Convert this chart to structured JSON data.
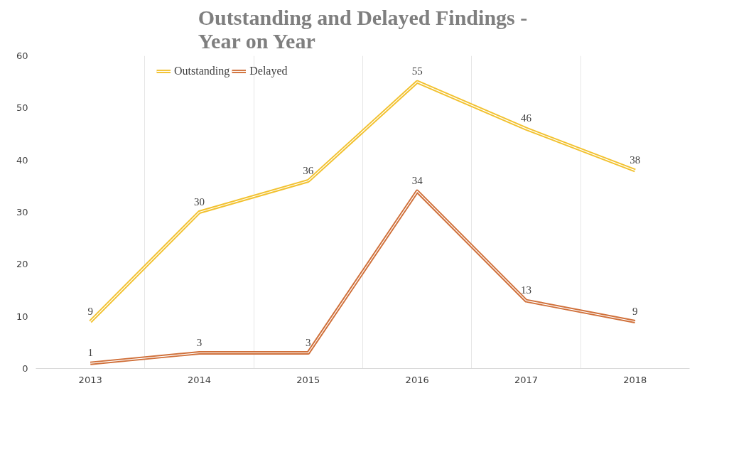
{
  "chart_data": {
    "type": "line",
    "title": "Outstanding and Delayed Findings -\nYear on Year",
    "categories": [
      "2013",
      "2014",
      "2015",
      "2016",
      "2017",
      "2018"
    ],
    "series": [
      {
        "name": "Outstanding",
        "color": "#f2c12e",
        "values": [
          9,
          30,
          36,
          55,
          46,
          38
        ]
      },
      {
        "name": "Delayed",
        "color": "#d0703a",
        "values": [
          1,
          3,
          3,
          34,
          13,
          9
        ]
      }
    ],
    "ylim": [
      0,
      60
    ],
    "yticks": [
      0,
      10,
      20,
      30,
      40,
      50,
      60
    ],
    "grid": "x",
    "legend": "top",
    "data_labels": true,
    "marker": "none",
    "line_style": "solid"
  }
}
